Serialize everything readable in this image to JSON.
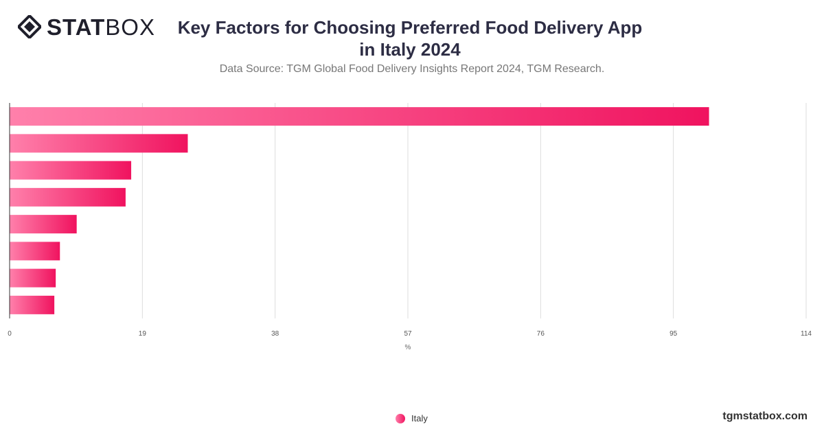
{
  "brand": {
    "logo_bold": "STAT",
    "logo_light": "BOX",
    "website": "tgmstatbox.com"
  },
  "header": {
    "title_line1": "Key Factors for Choosing Preferred Food Delivery App",
    "title_line2": "in Italy 2024",
    "subtitle": "Data Source: TGM Global Food Delivery Insights Report 2024, TGM Research."
  },
  "colors": {
    "bar_start": "#ff80ab",
    "bar_end": "#f0135f",
    "grid": "#dddddd",
    "axis": "#333333"
  },
  "chart_data": {
    "type": "bar",
    "orientation": "horizontal",
    "series": [
      {
        "name": "Italy",
        "values": [
          100.1,
          25.5,
          17.4,
          16.6,
          9.6,
          7.2,
          6.6,
          6.4
        ]
      }
    ],
    "xlabel": "%",
    "xlim": [
      0,
      114
    ],
    "xticks": [
      "0",
      "19",
      "38",
      "57",
      "76",
      "95",
      "114"
    ],
    "grid": true,
    "legend": "bottom-center"
  }
}
